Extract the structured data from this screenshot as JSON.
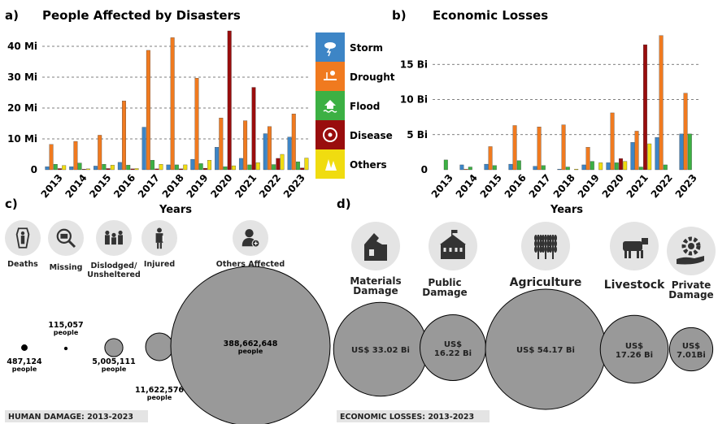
{
  "colors": {
    "storm": "#3d85c6",
    "drought": "#f07a1f",
    "flood": "#3cb043",
    "disease": "#990d0d",
    "others": "#f0dc10",
    "bubble_fill": "#999999",
    "icon_bg": "#e4e4e4",
    "icon_fg": "#333333",
    "footer_bg": "#e4e4e4"
  },
  "panels": {
    "a_letter": "a)",
    "a_title": "People Affected by Disasters",
    "b_letter": "b)",
    "b_title": "Economic Losses",
    "c_letter": "c)",
    "d_letter": "d)"
  },
  "legend": [
    {
      "key": "storm",
      "label": "Storm",
      "icon": "storm-cloud-icon"
    },
    {
      "key": "drought",
      "label": "Drought",
      "icon": "drought-sun-icon"
    },
    {
      "key": "flood",
      "label": "Flood",
      "icon": "flood-house-icon"
    },
    {
      "key": "disease",
      "label": "Disease",
      "icon": "biohazard-icon"
    },
    {
      "key": "others",
      "label": "Others",
      "icon": "others-trees-icon"
    }
  ],
  "chart_data": [
    {
      "type": "bar",
      "title": "People Affected by Disasters",
      "xlabel": "Years",
      "ylabel": "",
      "ylim": [
        0,
        45
      ],
      "yticks": [
        0,
        10,
        20,
        30,
        40
      ],
      "ytick_labels": [
        "0",
        "10 Mi",
        "20 Mi",
        "30 Mi",
        "40 Mi"
      ],
      "grid": "dashed-horizontal",
      "categories": [
        "2013",
        "2014",
        "2015",
        "2016",
        "2017",
        "2018",
        "2019",
        "2020",
        "2021",
        "2022",
        "2023"
      ],
      "series": [
        {
          "name": "Storm",
          "values": [
            1.0,
            1.0,
            1.2,
            2.4,
            13.8,
            1.6,
            3.4,
            7.3,
            3.7,
            11.7,
            10.6
          ]
        },
        {
          "name": "Drought",
          "values": [
            8.2,
            9.2,
            11.2,
            22.3,
            38.7,
            42.8,
            29.7,
            16.8,
            15.9,
            14.0,
            18.1
          ]
        },
        {
          "name": "Flood",
          "values": [
            1.8,
            2.2,
            1.8,
            1.5,
            3.1,
            1.6,
            2.0,
            1.0,
            1.6,
            1.7,
            2.6
          ]
        },
        {
          "name": "Disease",
          "values": [
            0.4,
            0.2,
            0.4,
            0.3,
            0.3,
            0.3,
            0.5,
            45.0,
            26.7,
            3.7,
            0.6
          ]
        },
        {
          "name": "Others",
          "values": [
            1.4,
            0.3,
            1.5,
            0.4,
            1.8,
            1.6,
            3.1,
            1.3,
            2.3,
            5.0,
            3.8
          ]
        }
      ]
    },
    {
      "type": "bar",
      "title": "Economic Losses",
      "xlabel": "Years",
      "ylabel": "",
      "ylim": [
        0,
        20
      ],
      "yticks": [
        0,
        5,
        10,
        15
      ],
      "ytick_labels": [
        "0",
        "5 Bi",
        "10 Bi",
        "15 Bi"
      ],
      "grid": "dashed-horizontal",
      "categories": [
        "2013",
        "2014",
        "2015",
        "2016",
        "2017",
        "2018",
        "2019",
        "2020",
        "2021",
        "2022",
        "2023"
      ],
      "series": [
        {
          "name": "Storm",
          "values": [
            0.0,
            0.7,
            0.8,
            0.8,
            0.5,
            0.1,
            0.7,
            1.0,
            3.9,
            4.6,
            5.1
          ]
        },
        {
          "name": "Drought",
          "values": [
            0.0,
            0.1,
            3.3,
            6.3,
            6.1,
            6.4,
            3.2,
            8.1,
            5.5,
            19.1,
            10.9
          ]
        },
        {
          "name": "Flood",
          "values": [
            1.4,
            0.4,
            0.6,
            1.3,
            0.6,
            0.4,
            1.2,
            1.0,
            0.4,
            0.7,
            5.1
          ]
        },
        {
          "name": "Disease",
          "values": [
            0.0,
            0.0,
            0.0,
            0.0,
            0.0,
            0.0,
            0.0,
            1.6,
            17.8,
            0.0,
            0.0
          ]
        },
        {
          "name": "Others",
          "values": [
            0.0,
            0.0,
            0.0,
            0.0,
            0.0,
            0.1,
            1.0,
            1.2,
            3.7,
            0.0,
            0.0
          ]
        }
      ]
    },
    {
      "type": "bubble",
      "footer": "HUMAN DAMAGE: 2013-2023",
      "items": [
        {
          "key": "deaths",
          "label": "Deaths",
          "icon": "coffin-icon",
          "value": 487124,
          "value_text": "487,124",
          "unit": "people"
        },
        {
          "key": "missing",
          "label": "Missing",
          "icon": "missing-search-icon",
          "value": 115057,
          "value_text": "115,057",
          "unit": "people"
        },
        {
          "key": "dislodged",
          "label": "Dislodged/\nUnsheltered",
          "icon": "family-icon",
          "value": 5005111,
          "value_text": "5,005,111",
          "unit": "people"
        },
        {
          "key": "injured",
          "label": "Injured",
          "icon": "injured-person-icon",
          "value": 11622576,
          "value_text": "11,622,576",
          "unit": "people"
        },
        {
          "key": "others",
          "label": "Others Affected",
          "icon": "person-plus-icon",
          "value": 388662648,
          "value_text": "388,662,648",
          "unit": "people"
        }
      ]
    },
    {
      "type": "bubble",
      "footer": "ECONOMIC LOSSES: 2013-2023",
      "items": [
        {
          "key": "materials",
          "label": "Materials\nDamage",
          "icon": "ruined-house-icon",
          "value": 33.02,
          "value_text": "US$ 33.02 Bi"
        },
        {
          "key": "public",
          "label": "Public\nDamage",
          "icon": "school-icon",
          "value": 16.22,
          "value_text": "US$\n16.22 Bi"
        },
        {
          "key": "agriculture",
          "label": "Agriculture",
          "icon": "wheat-icon",
          "value": 54.17,
          "value_text": "US$ 54.17 Bi"
        },
        {
          "key": "livestock",
          "label": "Livestock",
          "icon": "cow-icon",
          "value": 17.26,
          "value_text": "US$\n17.26 Bi"
        },
        {
          "key": "private",
          "label": "Private\nDamage",
          "icon": "hand-gear-icon",
          "value": 7.01,
          "value_text": "US$\n7.01Bi"
        }
      ]
    }
  ]
}
